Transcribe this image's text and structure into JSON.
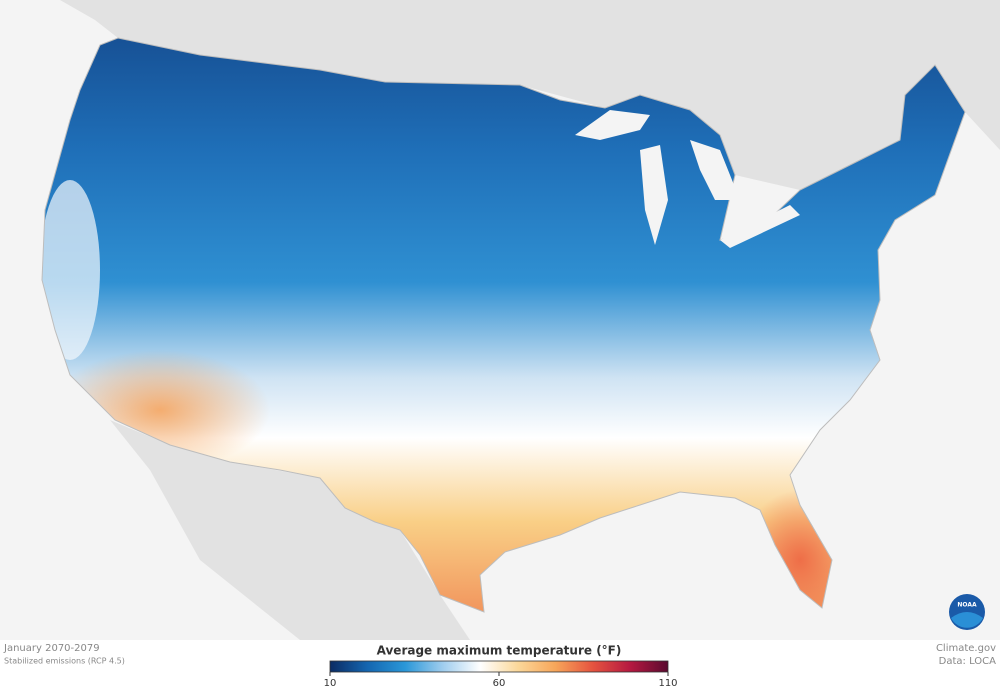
{
  "caption": {
    "period": "January 2070-2079",
    "scenario": "Stabilized emissions (RCP 4.5)"
  },
  "legend": {
    "title": "Average maximum temperature (°F)",
    "range": [
      10,
      110
    ],
    "ticks": [
      10,
      60,
      110
    ],
    "colors": [
      "#0b2b63",
      "#1466b0",
      "#2a97d8",
      "#9fcdee",
      "#ffffff",
      "#fbd89a",
      "#f7a65a",
      "#e5533f",
      "#b51840",
      "#5a0a30"
    ]
  },
  "credits": {
    "source": "Climate.gov",
    "data": "Data: LOCA"
  },
  "logo": "NOAA"
}
